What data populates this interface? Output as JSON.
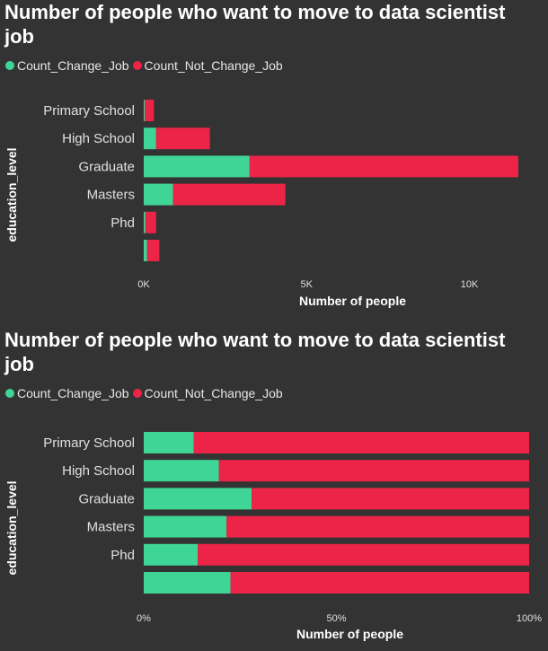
{
  "colors": {
    "change": "#3fd597",
    "not_change": "#ec2447",
    "background": "#333333"
  },
  "chart_data": [
    {
      "type": "bar",
      "stacked": true,
      "orientation": "horizontal",
      "title": "Number of people who want to move to data scientist job",
      "xlabel": "Number of people",
      "ylabel": "education_level",
      "categories": [
        "Primary School",
        "High School",
        "Graduate",
        "Masters",
        "Phd",
        ""
      ],
      "series": [
        {
          "name": "Count_Change_Job",
          "values": [
            30,
            380,
            3250,
            900,
            50,
            100
          ]
        },
        {
          "name": "Count_Not_Change_Job",
          "values": [
            280,
            1650,
            8250,
            3450,
            330,
            380
          ]
        }
      ],
      "xlim": [
        0,
        12000
      ],
      "xticks": [
        0,
        5000,
        10000
      ],
      "xtick_labels": [
        "0K",
        "5K",
        "10K"
      ],
      "legend": "top-left",
      "grid": false
    },
    {
      "type": "bar",
      "stacked": true,
      "percent": true,
      "orientation": "horizontal",
      "title": "Number of people who want to move to data scientist job",
      "xlabel": "Number of people",
      "ylabel": "education_level",
      "categories": [
        "Primary School",
        "High School",
        "Graduate",
        "Masters",
        "Phd",
        ""
      ],
      "series": [
        {
          "name": "Count_Change_Job",
          "values": [
            13,
            19.5,
            28,
            21.5,
            14,
            22.5
          ]
        },
        {
          "name": "Count_Not_Change_Job",
          "values": [
            87,
            80.5,
            72,
            78.5,
            86,
            77.5
          ]
        }
      ],
      "xlim": [
        0,
        100
      ],
      "xticks": [
        0,
        50,
        100
      ],
      "xtick_labels": [
        "0%",
        "50%",
        "100%"
      ],
      "legend": "top-left",
      "grid": false
    }
  ]
}
